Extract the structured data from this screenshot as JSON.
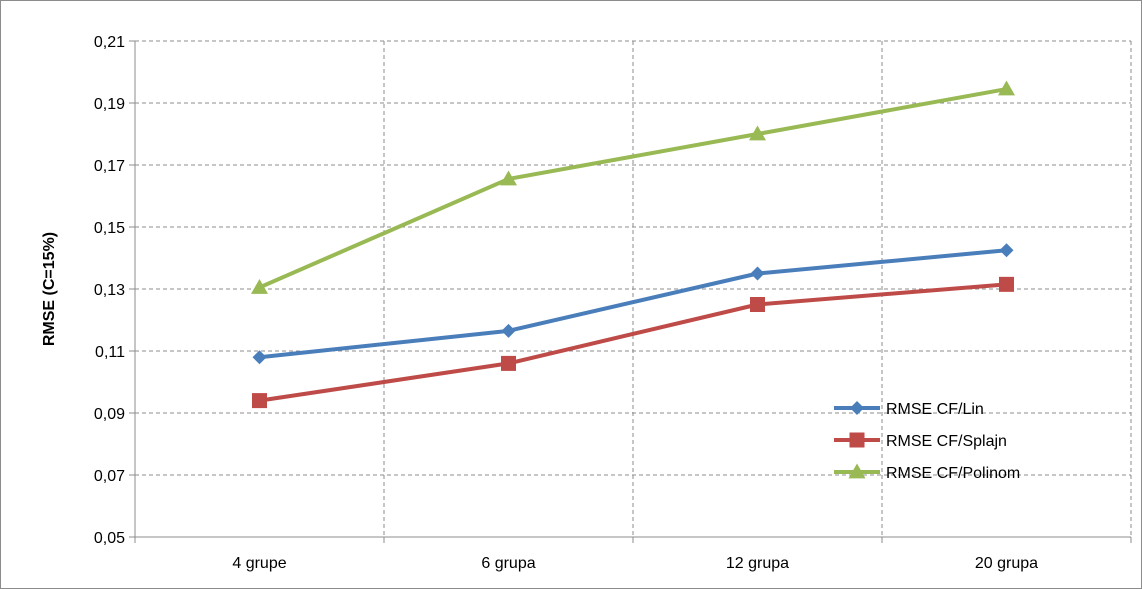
{
  "chart_data": {
    "type": "line",
    "title": "",
    "xlabel": "",
    "ylabel": "RMSE (C=15%)",
    "categories": [
      "4 grupe",
      "6 grupa",
      "12 grupa",
      "20 grupa"
    ],
    "ylim": [
      0.05,
      0.21
    ],
    "yticks": [
      "0,05",
      "0,07",
      "0,09",
      "0,11",
      "0,13",
      "0,15",
      "0,17",
      "0,19",
      "0,21"
    ],
    "grid": true,
    "legend_position": "bottom-right",
    "series": [
      {
        "name": "RMSE CF/Lin",
        "values": [
          0.108,
          0.1165,
          0.135,
          0.1425
        ],
        "color": "#4a7ebb",
        "marker": "diamond"
      },
      {
        "name": "RMSE CF/Splajn",
        "values": [
          0.094,
          0.106,
          0.125,
          0.1315
        ],
        "color": "#be4b48",
        "marker": "square"
      },
      {
        "name": "RMSE CF/Polinom",
        "values": [
          0.1305,
          0.1655,
          0.18,
          0.1945
        ],
        "color": "#98b954",
        "marker": "triangle"
      }
    ]
  }
}
